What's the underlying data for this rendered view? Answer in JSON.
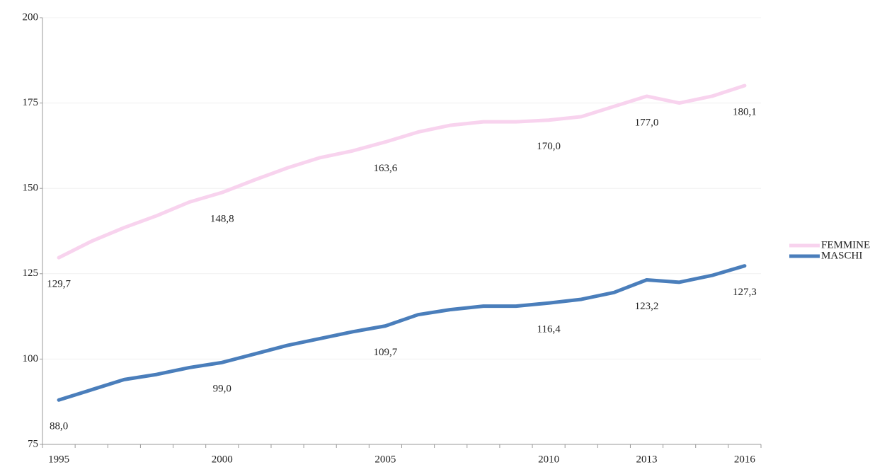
{
  "chart_data": {
    "type": "line",
    "categories": [
      "1995",
      null,
      null,
      null,
      null,
      "2000",
      null,
      null,
      null,
      null,
      "2005",
      null,
      null,
      null,
      null,
      "2010",
      null,
      null,
      "2013",
      null,
      null,
      "2016"
    ],
    "series": [
      {
        "name": "FEMMINE",
        "color": "#f8d3ee",
        "values": [
          129.7,
          134.5,
          138.5,
          142,
          146,
          148.8,
          152.5,
          156,
          159,
          161,
          163.6,
          166.5,
          168.5,
          169.5,
          169.5,
          170.0,
          171,
          174,
          177.0,
          175,
          177,
          180.1
        ],
        "value_labels": [
          "129,7",
          null,
          null,
          null,
          null,
          "148,8",
          null,
          null,
          null,
          null,
          "163,6",
          null,
          null,
          null,
          null,
          "170,0",
          null,
          null,
          "177,0",
          null,
          null,
          "180,1"
        ]
      },
      {
        "name": "MASCHI",
        "color": "#4a7ebb",
        "values": [
          88.0,
          91,
          94,
          95.5,
          97.5,
          99.0,
          101.5,
          104,
          106,
          108,
          109.7,
          113,
          114.5,
          115.5,
          115.5,
          116.4,
          117.5,
          119.5,
          123.2,
          122.5,
          124.5,
          127.3
        ],
        "value_labels": [
          "88,0",
          null,
          null,
          null,
          null,
          "99,0",
          null,
          null,
          null,
          null,
          "109,7",
          null,
          null,
          null,
          null,
          "116,4",
          null,
          null,
          "123,2",
          null,
          null,
          "127,3"
        ]
      }
    ],
    "ylim": [
      75,
      200
    ],
    "yticks": [
      75,
      100,
      125,
      150,
      175,
      200
    ],
    "grid": true,
    "legend": "right"
  }
}
